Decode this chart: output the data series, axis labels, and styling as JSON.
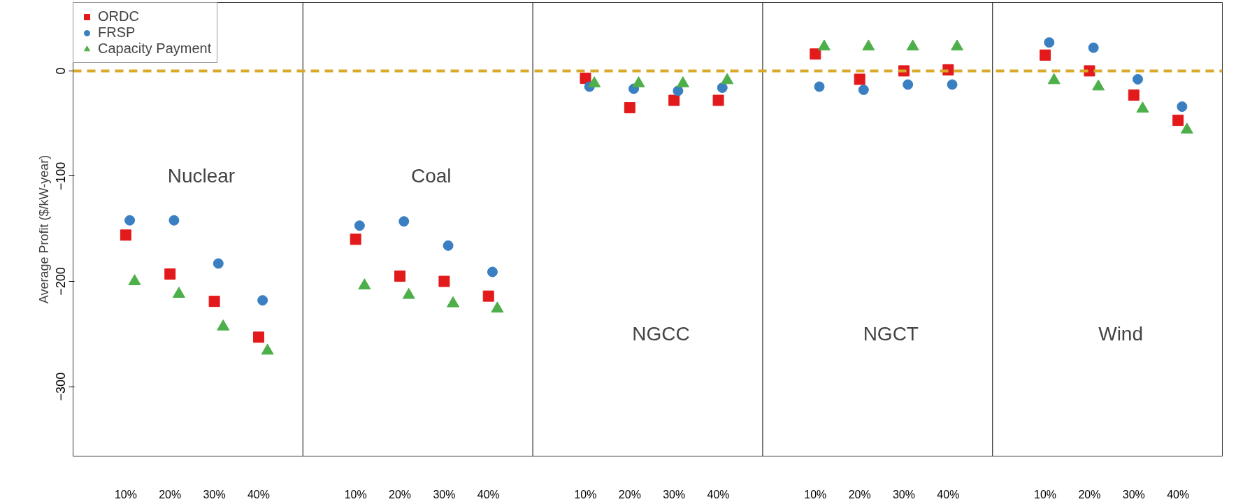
{
  "chart_data": {
    "type": "scatter",
    "ylabel": "Average Profit ($/kW-year)",
    "categories": [
      "10%",
      "20%",
      "30%",
      "40%",
      "10%",
      "20%",
      "30%",
      "40%",
      "10%",
      "20%",
      "30%",
      "40%",
      "10%",
      "20%",
      "30%",
      "40%",
      "10%",
      "20%",
      "30%",
      "40%"
    ],
    "ylim": [
      -366,
      65
    ],
    "yticks": [
      -300,
      -200,
      -100,
      0
    ],
    "legend": "top left",
    "annotations": [
      {
        "text": "Nuclear"
      },
      {
        "text": "Coal"
      },
      {
        "text": "NGCC"
      },
      {
        "text": "NGCT"
      },
      {
        "text": "Wind"
      }
    ],
    "ref_lines": [
      {
        "axis": "y",
        "value": 0,
        "color": "#d9a92a",
        "line_style": "dashed"
      }
    ],
    "series": [
      {
        "name": "ORDC",
        "color": "#e31a1c",
        "marker": "square",
        "values": [
          -156,
          -193,
          -219,
          -253,
          -160,
          -195,
          -200,
          -214,
          -7,
          -35,
          -28,
          -28,
          16,
          -8,
          0,
          1,
          15,
          0,
          -23,
          -47
        ]
      },
      {
        "name": "FRSP",
        "color": "#3a7fc1",
        "marker": "circle",
        "values": [
          -142,
          -142,
          -183,
          -218,
          -147,
          -143,
          -166,
          -191,
          -15,
          -17,
          -19,
          -16,
          -15,
          -18,
          -13,
          -13,
          27,
          22,
          -8,
          -34
        ]
      },
      {
        "name": "Capacity Payment",
        "color": "#4daf4a",
        "marker": "triangle",
        "values": [
          -200,
          -212,
          -243,
          -266,
          -204,
          -213,
          -221,
          -226,
          -12,
          -12,
          -12,
          -9,
          23,
          23,
          23,
          23,
          -9,
          -15,
          -36,
          -56
        ]
      }
    ]
  }
}
